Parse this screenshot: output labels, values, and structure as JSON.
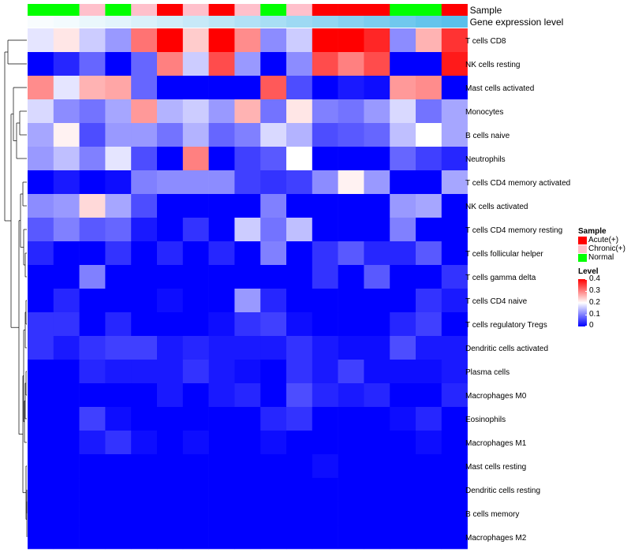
{
  "chart_data": {
    "type": "heatmap",
    "title": "",
    "rows": [
      "T cells CD8",
      "NK cells resting",
      "Mast cells activated",
      "Monocytes",
      "B cells naive",
      "Neutrophils",
      "T cells CD4 memory activated",
      "NK cells activated",
      "T cells CD4 memory resting",
      "T cells follicular helper",
      "T cells gamma delta",
      "T cells CD4 naive",
      "T cells regulatory  Tregs",
      "Dendritic cells activated",
      "Plasma cells",
      "Macrophages M0",
      "Eosinophils",
      "Macrophages M1",
      "Mast cells resting",
      "Dendritic cells resting",
      "B cells memory",
      "Macrophages M2"
    ],
    "values": [
      [
        0.18,
        0.22,
        0.16,
        0.12,
        0.31,
        0.4,
        0.24,
        0.4,
        0.29,
        0.11,
        0.16,
        0.4,
        0.4,
        0.37,
        0.11,
        0.26,
        0.36
      ],
      [
        0.0,
        0.03,
        0.08,
        0.0,
        0.08,
        0.3,
        0.16,
        0.34,
        0.12,
        0.0,
        0.11,
        0.34,
        0.3,
        0.34,
        0.0,
        0.0,
        0.38
      ],
      [
        0.29,
        0.18,
        0.26,
        0.27,
        0.08,
        0.0,
        0.0,
        0.0,
        0.0,
        0.33,
        0.06,
        0.0,
        0.02,
        0.01,
        0.28,
        0.29,
        0.0
      ],
      [
        0.17,
        0.11,
        0.09,
        0.13,
        0.28,
        0.14,
        0.16,
        0.12,
        0.26,
        0.09,
        0.22,
        0.1,
        0.09,
        0.12,
        0.17,
        0.09,
        0.13
      ],
      [
        0.13,
        0.21,
        0.06,
        0.12,
        0.12,
        0.09,
        0.14,
        0.08,
        0.1,
        0.17,
        0.14,
        0.06,
        0.07,
        0.08,
        0.15,
        0.2,
        0.13
      ],
      [
        0.12,
        0.15,
        0.1,
        0.18,
        0.06,
        0.0,
        0.3,
        0.0,
        0.05,
        0.07,
        0.2,
        0.0,
        0.0,
        0.0,
        0.08,
        0.05,
        0.03
      ],
      [
        0.0,
        0.02,
        0.0,
        0.01,
        0.1,
        0.11,
        0.11,
        0.11,
        0.05,
        0.04,
        0.05,
        0.11,
        0.21,
        0.12,
        0.0,
        0.0,
        0.13
      ],
      [
        0.11,
        0.12,
        0.23,
        0.13,
        0.06,
        0.0,
        0.0,
        0.0,
        0.0,
        0.1,
        0.0,
        0.0,
        0.0,
        0.0,
        0.12,
        0.13,
        0.0
      ],
      [
        0.07,
        0.1,
        0.07,
        0.08,
        0.02,
        0.0,
        0.04,
        0.0,
        0.16,
        0.09,
        0.15,
        0.0,
        0.0,
        0.0,
        0.1,
        0.0,
        0.0
      ],
      [
        0.03,
        0.0,
        0.0,
        0.04,
        0.0,
        0.03,
        0.0,
        0.03,
        0.0,
        0.1,
        0.0,
        0.04,
        0.07,
        0.03,
        0.03,
        0.07,
        0.0
      ],
      [
        0.0,
        0.0,
        0.1,
        0.0,
        0.0,
        0.0,
        0.0,
        0.0,
        0.0,
        0.0,
        0.0,
        0.04,
        0.0,
        0.07,
        0.0,
        0.0,
        0.04
      ],
      [
        0.0,
        0.03,
        0.0,
        0.0,
        0.0,
        0.01,
        0.0,
        0.0,
        0.12,
        0.03,
        0.0,
        0.0,
        0.0,
        0.0,
        0.0,
        0.04,
        0.02
      ],
      [
        0.04,
        0.04,
        0.0,
        0.03,
        0.0,
        0.0,
        0.0,
        0.01,
        0.04,
        0.05,
        0.01,
        0.0,
        0.0,
        0.0,
        0.03,
        0.05,
        0.0
      ],
      [
        0.04,
        0.02,
        0.04,
        0.05,
        0.05,
        0.02,
        0.03,
        0.02,
        0.02,
        0.02,
        0.04,
        0.02,
        0.01,
        0.01,
        0.06,
        0.02,
        0.02
      ],
      [
        0.0,
        0.0,
        0.03,
        0.02,
        0.02,
        0.02,
        0.04,
        0.02,
        0.01,
        0.0,
        0.04,
        0.02,
        0.05,
        0.01,
        0.01,
        0.01,
        0.02
      ],
      [
        0.0,
        0.0,
        0.0,
        0.0,
        0.0,
        0.02,
        0.0,
        0.02,
        0.03,
        0.0,
        0.06,
        0.03,
        0.02,
        0.03,
        0.0,
        0.0,
        0.03
      ],
      [
        0.0,
        0.0,
        0.05,
        0.01,
        0.0,
        0.0,
        0.0,
        0.0,
        0.0,
        0.03,
        0.04,
        0.0,
        0.0,
        0.0,
        0.01,
        0.03,
        0.0
      ],
      [
        0.0,
        0.0,
        0.02,
        0.04,
        0.01,
        0.0,
        0.01,
        0.0,
        0.0,
        0.01,
        0.0,
        0.0,
        0.0,
        0.0,
        0.0,
        0.01,
        0.0
      ],
      [
        0.0,
        0.0,
        0.0,
        0.0,
        0.0,
        0.0,
        0.0,
        0.0,
        0.0,
        0.0,
        0.0,
        0.01,
        0.0,
        0.0,
        0.0,
        0.0,
        0.0
      ],
      [
        0.0,
        0.0,
        0.0,
        0.0,
        0.0,
        0.0,
        0.0,
        0.0,
        0.0,
        0.0,
        0.0,
        0.0,
        0.0,
        0.0,
        0.0,
        0.0,
        0.0
      ],
      [
        0.0,
        0.0,
        0.0,
        0.0,
        0.0,
        0.0,
        0.0,
        0.0,
        0.0,
        0.0,
        0.0,
        0.0,
        0.0,
        0.0,
        0.0,
        0.0,
        0.0
      ],
      [
        0.0,
        0.0,
        0.0,
        0.0,
        0.0,
        0.0,
        0.0,
        0.0,
        0.0,
        0.0,
        0.0,
        0.0,
        0.0,
        0.0,
        0.0,
        0.0,
        0.0
      ]
    ],
    "annotations": [
      {
        "name": "Sample",
        "values": [
          "Normal",
          "Normal",
          "Chronic(+)",
          "Normal",
          "Chronic(+)",
          "Acute(+)",
          "Chronic(+)",
          "Acute(+)",
          "Chronic(+)",
          "Normal",
          "Chronic(+)",
          "Acute(+)",
          "Acute(+)",
          "Acute(+)",
          "Normal",
          "Normal",
          "Acute(+)"
        ]
      },
      {
        "name": "Gene expression level",
        "values": [
          0.03,
          0.05,
          0.09,
          0.12,
          0.16,
          0.2,
          0.24,
          0.28,
          0.33,
          0.37,
          0.42,
          0.46,
          0.51,
          0.56,
          0.61,
          0.66,
          0.7
        ]
      }
    ],
    "color_scale": {
      "low": "#0000ff",
      "mid": "#ffffff",
      "high": "#ff0000",
      "min": 0,
      "mid_value": 0.2,
      "max": 0.4
    },
    "legends": {
      "sample": {
        "title": "Sample",
        "items": [
          {
            "label": "Acute(+)",
            "color": "#ff0000"
          },
          {
            "label": "Chronic(+)",
            "color": "#ffc0cb"
          },
          {
            "label": "Normal",
            "color": "#00ff00"
          }
        ]
      },
      "level": {
        "title": "Level",
        "ticks": [
          "0.4",
          "0.3",
          "0.2",
          "0.1",
          "0"
        ],
        "tick_values": [
          0.4,
          0.3,
          0.2,
          0.1,
          0
        ]
      }
    },
    "dendrogram": {
      "type": "row",
      "side": "left"
    }
  }
}
